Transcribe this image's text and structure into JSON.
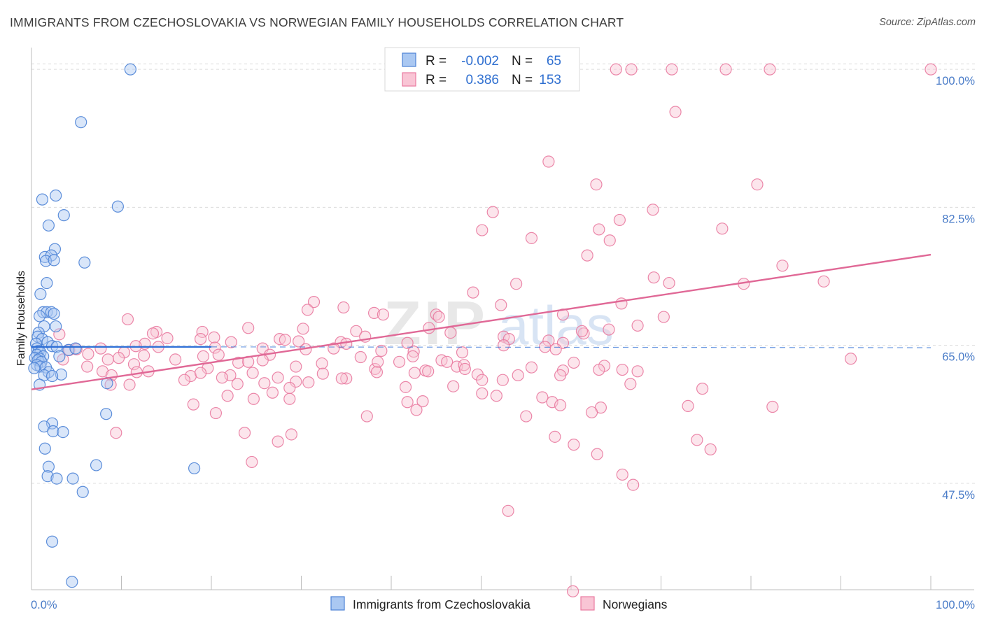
{
  "title": "IMMIGRANTS FROM CZECHOSLOVAKIA VS NORWEGIAN FAMILY HOUSEHOLDS CORRELATION CHART",
  "source": "Source: ZipAtlas.com",
  "watermark": {
    "zip": "ZIP",
    "atlas": "atlas"
  },
  "chart_data": {
    "type": "scatter",
    "title": "IMMIGRANTS FROM CZECHOSLOVAKIA VS NORWEGIAN FAMILY HOUSEHOLDS CORRELATION CHART",
    "xlabel": "",
    "ylabel": "Family Households",
    "xlim": [
      0,
      100
    ],
    "ylim": [
      34.0,
      101.7
    ],
    "x_ticks": [
      "0.0%",
      "100.0%"
    ],
    "y_ticks": [
      {
        "value": 100.0,
        "label": "100.0%"
      },
      {
        "value": 82.5,
        "label": "82.5%"
      },
      {
        "value": 65.0,
        "label": "65.0%"
      },
      {
        "value": 47.5,
        "label": "47.5%"
      }
    ],
    "grid": true,
    "legend": {
      "placement": "top-center",
      "rows": [
        {
          "r_label": "R =",
          "r_value": "-0.002",
          "n_label": "N =",
          "n_value": "65"
        },
        {
          "r_label": "R =",
          "r_value": "0.386",
          "n_label": "N =",
          "n_value": "153"
        }
      ]
    },
    "series": [
      {
        "name": "Immigrants from Czechoslovakia",
        "color": "#7aa7e6",
        "stroke": "#4d83d6",
        "line_color": "#2e6fd6",
        "trend": {
          "x": [
            0,
            20
          ],
          "y": [
            64.8,
            64.8
          ],
          "dashed_to": 100,
          "dashed_y": 64.7
        },
        "points": [
          [
            11,
            100
          ],
          [
            5.5,
            93.3
          ],
          [
            1.2,
            83.5
          ],
          [
            2.7,
            84
          ],
          [
            3.6,
            81.5
          ],
          [
            9.6,
            82.6
          ],
          [
            1.9,
            80.2
          ],
          [
            2.6,
            77.2
          ],
          [
            1.5,
            76.2
          ],
          [
            2.2,
            76.4
          ],
          [
            1.6,
            75.7
          ],
          [
            2.5,
            75.8
          ],
          [
            5.9,
            75.5
          ],
          [
            1.7,
            72.9
          ],
          [
            1,
            71.5
          ],
          [
            1.3,
            69.2
          ],
          [
            1.7,
            69.2
          ],
          [
            2.2,
            69.2
          ],
          [
            2.5,
            69
          ],
          [
            0.9,
            68.7
          ],
          [
            2.7,
            67.4
          ],
          [
            1.4,
            67.4
          ],
          [
            0.8,
            66.6
          ],
          [
            0.7,
            66.1
          ],
          [
            1.2,
            65.8
          ],
          [
            0.5,
            65.2
          ],
          [
            1.8,
            65.4
          ],
          [
            2.3,
            64.9
          ],
          [
            2.8,
            64.8
          ],
          [
            4.1,
            64.4
          ],
          [
            4.9,
            64.6
          ],
          [
            0.6,
            64.6
          ],
          [
            0.8,
            64.3
          ],
          [
            1,
            64.1
          ],
          [
            0.6,
            63.8
          ],
          [
            1.3,
            63.6
          ],
          [
            0.4,
            63.4
          ],
          [
            0.9,
            63.3
          ],
          [
            3.1,
            63.6
          ],
          [
            0.7,
            63.1
          ],
          [
            1.1,
            62.9
          ],
          [
            0.6,
            62.5
          ],
          [
            1,
            62.3
          ],
          [
            1.6,
            62.2
          ],
          [
            0.3,
            62.1
          ],
          [
            1.9,
            61.6
          ],
          [
            3.3,
            61.3
          ],
          [
            1.4,
            61.2
          ],
          [
            2.3,
            61.1
          ],
          [
            8.4,
            60.2
          ],
          [
            0.9,
            60
          ],
          [
            8.3,
            56.3
          ],
          [
            2.3,
            55.1
          ],
          [
            1.4,
            54.7
          ],
          [
            2.4,
            54.1
          ],
          [
            3.5,
            54
          ],
          [
            1.5,
            51.9
          ],
          [
            1.9,
            49.6
          ],
          [
            7.2,
            49.8
          ],
          [
            18.1,
            49.4
          ],
          [
            1.8,
            48.4
          ],
          [
            2.8,
            48.1
          ],
          [
            4.6,
            48.1
          ],
          [
            5.7,
            46.4
          ],
          [
            2.3,
            40.1
          ],
          [
            4.5,
            35
          ]
        ]
      },
      {
        "name": "Norwegians",
        "color": "#f4a5bf",
        "stroke": "#e97aa0",
        "line_color": "#e06896",
        "trend": {
          "x": [
            0,
            100
          ],
          "y": [
            59.4,
            76.5
          ]
        },
        "points": [
          [
            65,
            100
          ],
          [
            66.7,
            100
          ],
          [
            71.2,
            100
          ],
          [
            77.2,
            100
          ],
          [
            82.1,
            100
          ],
          [
            100,
            100
          ],
          [
            71.6,
            94.6
          ],
          [
            57.5,
            88.3
          ],
          [
            62.8,
            85.4
          ],
          [
            80.7,
            85.4
          ],
          [
            51.3,
            81.9
          ],
          [
            69.1,
            82.2
          ],
          [
            65.4,
            80.9
          ],
          [
            50.1,
            79.6
          ],
          [
            63.1,
            79.7
          ],
          [
            76.8,
            79.8
          ],
          [
            55.6,
            78.6
          ],
          [
            64.3,
            78.3
          ],
          [
            61.8,
            76.4
          ],
          [
            83.5,
            75.1
          ],
          [
            69.2,
            73.6
          ],
          [
            88.1,
            73.1
          ],
          [
            70.9,
            72.9
          ],
          [
            79.2,
            72.8
          ],
          [
            53.9,
            72.8
          ],
          [
            49.1,
            71.7
          ],
          [
            31.4,
            70.5
          ],
          [
            52.2,
            70.1
          ],
          [
            30.7,
            69.5
          ],
          [
            34.7,
            69.8
          ],
          [
            38.1,
            69.1
          ],
          [
            39.1,
            68.9
          ],
          [
            45,
            68.9
          ],
          [
            45.3,
            68.6
          ],
          [
            59.1,
            68.9
          ],
          [
            65.6,
            70.3
          ],
          [
            70.3,
            68.6
          ],
          [
            10.7,
            68.3
          ],
          [
            13.9,
            66.7
          ],
          [
            19,
            66.7
          ],
          [
            24.1,
            67.2
          ],
          [
            30.2,
            67.1
          ],
          [
            36.1,
            66.8
          ],
          [
            44.2,
            67.2
          ],
          [
            46.6,
            66.6
          ],
          [
            61.4,
            66.5
          ],
          [
            64.2,
            67
          ],
          [
            67.4,
            67.5
          ],
          [
            61.2,
            66.8
          ],
          [
            3.1,
            66.4
          ],
          [
            4.2,
            64.4
          ],
          [
            13.5,
            66.5
          ],
          [
            15.1,
            65.9
          ],
          [
            18.8,
            65.8
          ],
          [
            20.3,
            66
          ],
          [
            22.2,
            65.4
          ],
          [
            27.6,
            65.8
          ],
          [
            28.2,
            65.7
          ],
          [
            29.7,
            65.5
          ],
          [
            34.4,
            65.4
          ],
          [
            35,
            65.2
          ],
          [
            37.1,
            66.1
          ],
          [
            41.8,
            65.3
          ],
          [
            52.5,
            66.1
          ],
          [
            53.1,
            65.8
          ],
          [
            57.5,
            65.6
          ],
          [
            59.1,
            65.3
          ],
          [
            12.6,
            65.2
          ],
          [
            11.6,
            64.9
          ],
          [
            20.4,
            64.7
          ],
          [
            25.7,
            64.6
          ],
          [
            33.6,
            64.6
          ],
          [
            38.9,
            64.3
          ],
          [
            42.5,
            64.2
          ],
          [
            47.9,
            64.1
          ],
          [
            52.5,
            65
          ],
          [
            57.1,
            64.8
          ],
          [
            58.3,
            64.5
          ],
          [
            5,
            64.5
          ],
          [
            7.7,
            64.6
          ],
          [
            14.1,
            64.8
          ],
          [
            6.3,
            63.9
          ],
          [
            10.3,
            64.1
          ],
          [
            19.1,
            63.6
          ],
          [
            20.8,
            63.8
          ],
          [
            26.5,
            63.8
          ],
          [
            30.5,
            64.5
          ],
          [
            36.6,
            63.5
          ],
          [
            42.4,
            63.6
          ],
          [
            40.9,
            62.9
          ],
          [
            45.6,
            63.1
          ],
          [
            47.3,
            62.3
          ],
          [
            63.7,
            62.4
          ],
          [
            67.4,
            61.7
          ],
          [
            9.7,
            63.4
          ],
          [
            12.5,
            63.7
          ],
          [
            16,
            63.2
          ],
          [
            8.5,
            63.2
          ],
          [
            11.4,
            62.6
          ],
          [
            19.6,
            62.1
          ],
          [
            23,
            62.8
          ],
          [
            24.1,
            62.9
          ],
          [
            25.7,
            63.1
          ],
          [
            29.4,
            62.3
          ],
          [
            32.3,
            62.7
          ],
          [
            38.2,
            62
          ],
          [
            46.2,
            62.9
          ],
          [
            48.1,
            62.5
          ],
          [
            60.3,
            62.8
          ],
          [
            3.5,
            63.2
          ],
          [
            6.2,
            62.3
          ],
          [
            7.9,
            61.7
          ],
          [
            11.7,
            61.6
          ],
          [
            13,
            61.7
          ],
          [
            17.7,
            61.1
          ],
          [
            18.8,
            61.5
          ],
          [
            22.1,
            61.2
          ],
          [
            27.4,
            60.9
          ],
          [
            35,
            60.8
          ],
          [
            38.5,
            62.9
          ],
          [
            42.6,
            61.5
          ],
          [
            43.8,
            61.8
          ],
          [
            44.1,
            61.7
          ],
          [
            48.2,
            62
          ],
          [
            55.6,
            62.2
          ],
          [
            59.1,
            61.8
          ],
          [
            63.1,
            61.9
          ],
          [
            65.7,
            61.9
          ],
          [
            91.1,
            63.3
          ],
          [
            8.9,
            61.2
          ],
          [
            17,
            60.6
          ],
          [
            21.2,
            60.9
          ],
          [
            24.6,
            61.5
          ],
          [
            29.4,
            60.4
          ],
          [
            32.4,
            61.4
          ],
          [
            34.5,
            60.8
          ],
          [
            38.4,
            61.6
          ],
          [
            49.6,
            61.3
          ],
          [
            54.1,
            61.2
          ],
          [
            58.8,
            61.2
          ],
          [
            10.9,
            60
          ],
          [
            22.9,
            60.1
          ],
          [
            25.9,
            60.2
          ],
          [
            28.7,
            59.6
          ],
          [
            30.8,
            60.3
          ],
          [
            41.6,
            59.7
          ],
          [
            46.9,
            59.8
          ],
          [
            50.1,
            60.6
          ],
          [
            52.4,
            60.6
          ],
          [
            66.6,
            60.1
          ],
          [
            74.6,
            59.5
          ],
          [
            8.8,
            60
          ],
          [
            21.8,
            58.6
          ],
          [
            24.7,
            58.2
          ],
          [
            26.8,
            59
          ],
          [
            28.7,
            58.2
          ],
          [
            41.8,
            57.8
          ],
          [
            43.5,
            57.9
          ],
          [
            50.1,
            58.9
          ],
          [
            51.7,
            58.6
          ],
          [
            56.8,
            58.4
          ],
          [
            57.9,
            57.8
          ],
          [
            63.3,
            57.1
          ],
          [
            73,
            57.3
          ],
          [
            18,
            57.5
          ],
          [
            20.5,
            56.4
          ],
          [
            37.3,
            56
          ],
          [
            42.8,
            56.8
          ],
          [
            55,
            56
          ],
          [
            58.8,
            57.4
          ],
          [
            62.3,
            56.5
          ],
          [
            82.4,
            57.2
          ],
          [
            74,
            53
          ],
          [
            9.4,
            53.9
          ],
          [
            23.7,
            53.9
          ],
          [
            27.4,
            52.8
          ],
          [
            28.9,
            53.7
          ],
          [
            58.2,
            53.4
          ],
          [
            60.3,
            52.4
          ],
          [
            62.9,
            51.2
          ],
          [
            75.5,
            51.8
          ],
          [
            24.5,
            50.2
          ],
          [
            65.7,
            48.6
          ],
          [
            66.9,
            47.3
          ],
          [
            53,
            44
          ],
          [
            60.2,
            33.8
          ]
        ]
      }
    ]
  },
  "bottom_legend": [
    {
      "label": "Immigrants from Czechoslovakia"
    },
    {
      "label": "Norwegians"
    }
  ],
  "colors": {
    "blue_fill": "#aac8f2",
    "blue_stroke": "#4d83d6",
    "pink_fill": "#f9c5d5",
    "pink_stroke": "#e97aa0",
    "tick_text": "#4a7cc8",
    "grid": "#dcdcdc"
  }
}
